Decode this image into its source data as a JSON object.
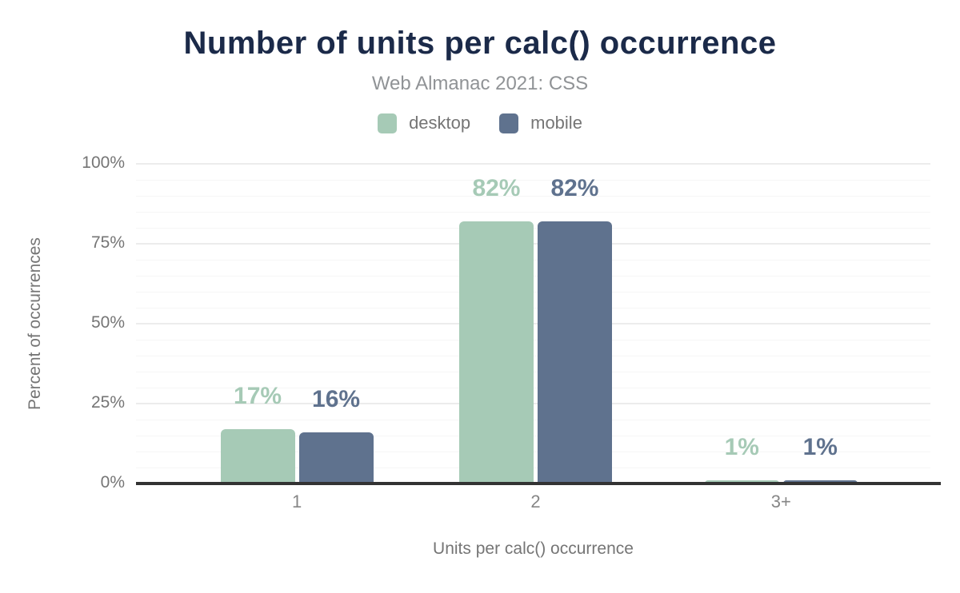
{
  "header": {
    "title": "Number of units per calc() occurrence",
    "subtitle": "Web Almanac 2021: CSS"
  },
  "legend": [
    {
      "label": "desktop",
      "color": "#a6cab6"
    },
    {
      "label": "mobile",
      "color": "#5f728e"
    }
  ],
  "colors": {
    "title": "#1b2a49",
    "subtitle": "#909396",
    "axis_text": "#757575",
    "axis_line": "#333333",
    "grid_major": "#ececec",
    "grid_minor": "#f6f6f6",
    "background": "#ffffff"
  },
  "chart_data": {
    "type": "bar",
    "title": "Number of units per calc() occurrence",
    "subtitle": "Web Almanac 2021: CSS",
    "categories": [
      "1",
      "2",
      "3+"
    ],
    "series": [
      {
        "name": "desktop",
        "color": "#a6cab6",
        "values": [
          17,
          82,
          1
        ],
        "labels": [
          "17%",
          "82%",
          "1%"
        ]
      },
      {
        "name": "mobile",
        "color": "#5f728e",
        "values": [
          16,
          82,
          1
        ],
        "labels": [
          "16%",
          "82%",
          "1%"
        ]
      }
    ],
    "xlabel": "Units per calc() occurrence",
    "ylabel": "Percent of occurrences",
    "ylim": [
      0,
      100
    ],
    "yticks": [
      0,
      25,
      50,
      75,
      100
    ],
    "ytick_labels": [
      "0%",
      "25%",
      "50%",
      "75%",
      "100%"
    ],
    "minor_grid_step": 5,
    "grid": true,
    "legend_position": "top"
  }
}
